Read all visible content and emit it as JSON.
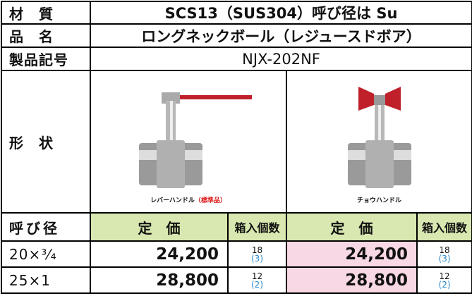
{
  "spec": {
    "material": {
      "label": "材　質",
      "value": "SCS13（SUS304）呼び径は Su"
    },
    "name": {
      "label": "品　名",
      "value": "ロングネックボール（レジュースドボア）"
    },
    "code": {
      "label": "製品記号",
      "value": "NJX-202NF"
    },
    "shape": {
      "label": "形　状",
      "lever": {
        "caption": "レバーハンドル",
        "note": "（標準品）"
      },
      "butterfly": {
        "caption": "チョウハンドル"
      }
    }
  },
  "table": {
    "header": [
      "呼び径",
      "定　価",
      "箱入個数",
      "定　価",
      "箱入個数"
    ],
    "rows": [
      {
        "size": "20×³⁄₄",
        "price1": "24,200",
        "qty1": "18",
        "box1": "(3)",
        "price2": "24,200",
        "qty2": "18",
        "box2": "(3)"
      },
      {
        "size": "25×1",
        "price1": "28,800",
        "qty1": "12",
        "box1": "(2)",
        "price2": "28,800",
        "qty2": "12",
        "box2": "(2)"
      }
    ]
  }
}
